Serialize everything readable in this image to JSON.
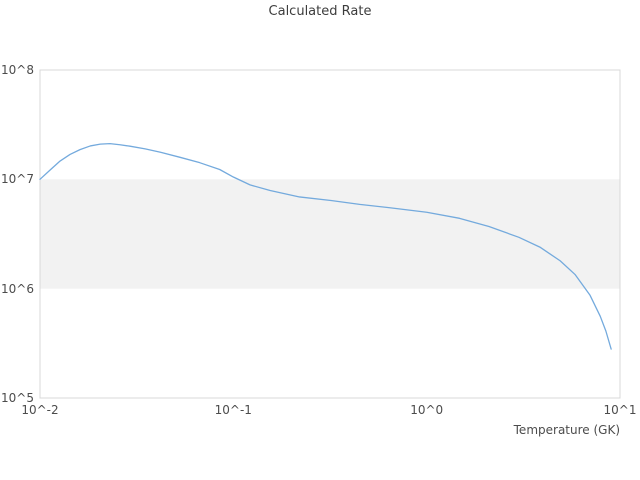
{
  "title": "Calculated Rate",
  "chart_data": {
    "type": "line",
    "title": "Calculated Rate",
    "xlabel": "Temperature (GK)",
    "ylabel": "",
    "x_scale": "log",
    "y_scale": "log",
    "xlim": [
      0.01,
      10
    ],
    "ylim": [
      100000,
      100000000
    ],
    "x_ticks": [
      {
        "value": 0.01,
        "label": "10^-2"
      },
      {
        "value": 0.1,
        "label": "10^-1"
      },
      {
        "value": 1,
        "label": "10^0"
      },
      {
        "value": 10,
        "label": "10^1"
      }
    ],
    "y_ticks": [
      {
        "value": 100000,
        "label": "10^5"
      },
      {
        "value": 1000000,
        "label": "10^6"
      },
      {
        "value": 10000000,
        "label": "10^7"
      },
      {
        "value": 100000000,
        "label": "10^8"
      }
    ],
    "grid": false,
    "legend": "none",
    "highlight_band": {
      "from": 1000000,
      "to": 10000000,
      "color": "#f2f2f2"
    },
    "frame_color": "#d8d8d8",
    "line_color": "#74aadd",
    "line_width": 1.3,
    "series": [
      {
        "name": "Calculated Rate",
        "x": [
          0.01,
          0.0113,
          0.0127,
          0.0143,
          0.0161,
          0.0182,
          0.0205,
          0.023,
          0.0259,
          0.0292,
          0.035,
          0.042,
          0.053,
          0.067,
          0.085,
          0.1,
          0.122,
          0.155,
          0.22,
          0.32,
          0.45,
          0.645,
          1.0,
          1.48,
          2.1,
          3.0,
          3.85,
          4.9,
          5.85,
          7.0,
          7.9,
          8.45,
          9.0
        ],
        "y": [
          10000000.0,
          12200000.0,
          14700000.0,
          16900000.0,
          18700000.0,
          20200000.0,
          21000000.0,
          21200000.0,
          20700000.0,
          20100000.0,
          19000000.0,
          17700000.0,
          15900000.0,
          14200000.0,
          12300000.0,
          10500000.0,
          8900000.0,
          7900000.0,
          6900000.0,
          6400000.0,
          5900000.0,
          5500000.0,
          5000000.0,
          4400000.0,
          3700000.0,
          2950000.0,
          2400000.0,
          1800000.0,
          1350000.0,
          870000.0,
          560000.0,
          410000.0,
          280000.0
        ]
      }
    ]
  }
}
